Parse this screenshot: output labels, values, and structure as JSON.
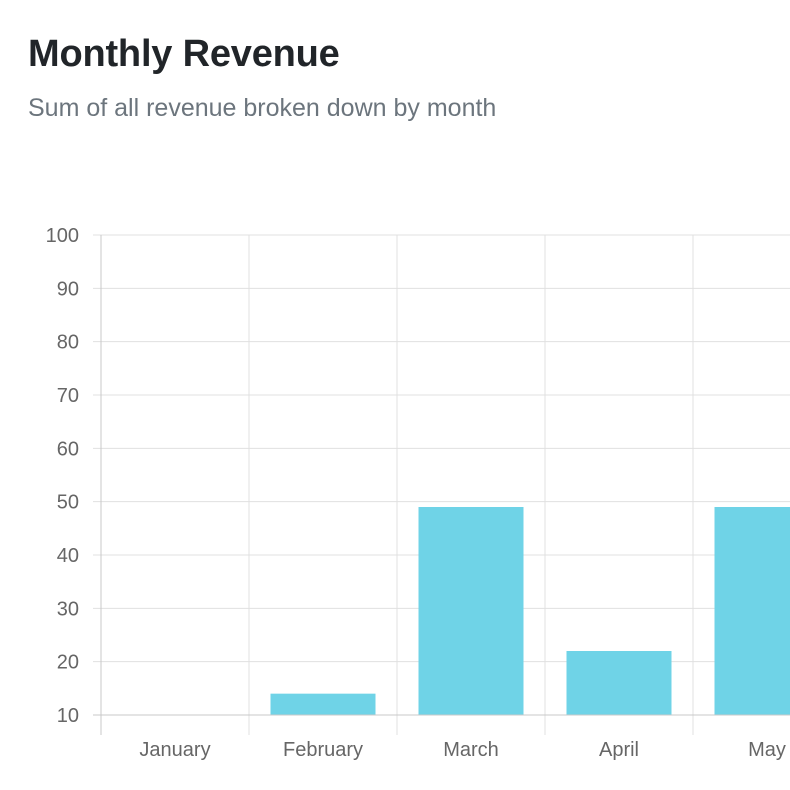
{
  "header": {
    "title": "Monthly Revenue",
    "subtitle": "Sum of all revenue broken down by month"
  },
  "colors": {
    "bar": "#6fd3e7",
    "grid": "#e0e0e0",
    "axis": "#c8c8c8",
    "tick_text": "#666666"
  },
  "chart_data": {
    "type": "bar",
    "categories": [
      "January",
      "February",
      "March",
      "April",
      "May"
    ],
    "values": [
      10,
      14,
      49,
      22,
      49
    ],
    "ylim": [
      10,
      100
    ],
    "yticks": [
      10,
      20,
      30,
      40,
      50,
      60,
      70,
      80,
      90,
      100
    ],
    "grid": true,
    "title": "Monthly Revenue",
    "xlabel": "",
    "ylabel": ""
  }
}
